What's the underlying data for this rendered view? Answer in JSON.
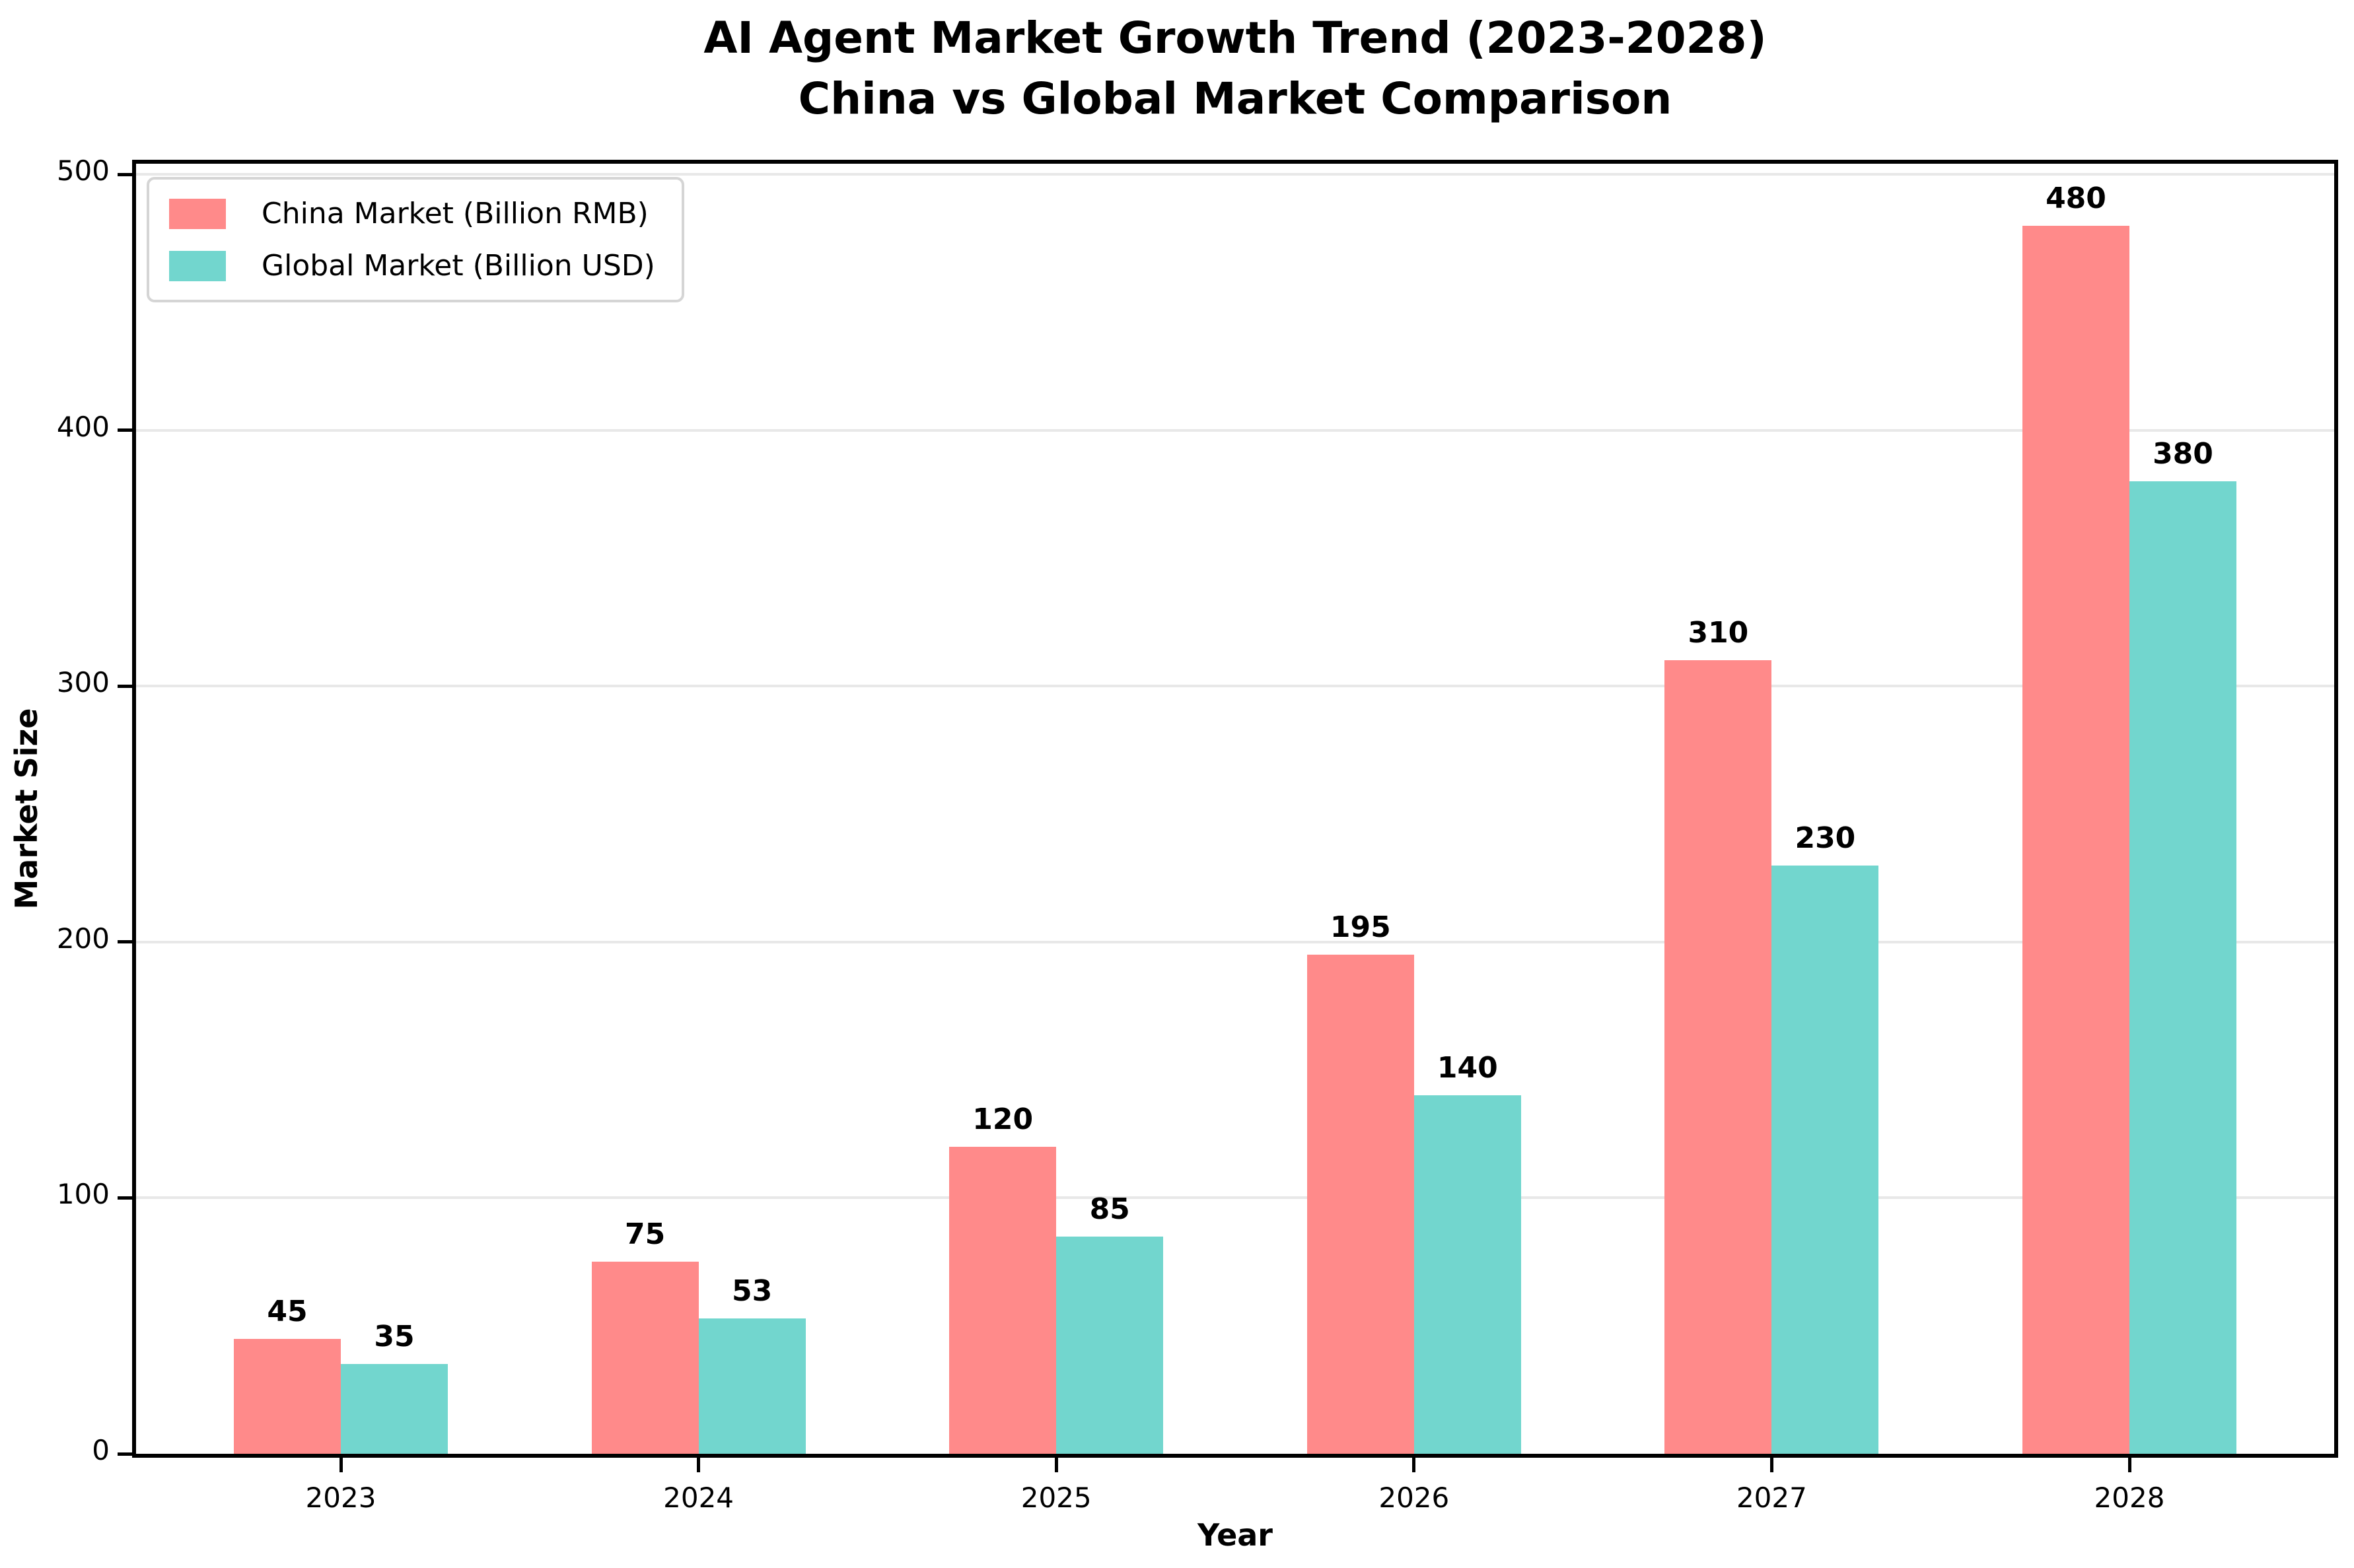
{
  "title": {
    "line1": "AI Agent Market Growth Trend (2023-2028)",
    "line2": "China vs Global Market Comparison"
  },
  "axes": {
    "xlabel": "Year",
    "ylabel": "Market Size",
    "yticks": [
      0,
      100,
      200,
      300,
      400,
      500
    ]
  },
  "legend": {
    "items": [
      {
        "key": "china",
        "label": "China Market (Billion RMB)",
        "color": "#FF8A8A"
      },
      {
        "key": "global",
        "label": "Global Market (Billion USD)",
        "color": "#72D6CE"
      }
    ]
  },
  "colors": {
    "china_bar": "#FF8A8A",
    "global_bar": "#72D6CE",
    "gridline": "#E8E8E8",
    "spine": "#000000",
    "legend_border": "#D5D5D5"
  },
  "chart_data": {
    "type": "bar",
    "categories": [
      "2023",
      "2024",
      "2025",
      "2026",
      "2027",
      "2028"
    ],
    "series": [
      {
        "key": "china",
        "name": "China Market (Billion RMB)",
        "color": "#FF8A8A",
        "values": [
          45,
          75,
          120,
          195,
          310,
          480
        ]
      },
      {
        "key": "global",
        "name": "Global Market (Billion USD)",
        "color": "#72D6CE",
        "values": [
          35,
          53,
          85,
          140,
          230,
          380
        ]
      }
    ],
    "title": "AI Agent Market Growth Trend (2023-2028)\nChina vs Global Market Comparison",
    "xlabel": "Year",
    "ylabel": "Market Size",
    "ylim": [
      0,
      503
    ],
    "grid": true,
    "bar_value_labels": true,
    "legend_position": "upper left"
  }
}
